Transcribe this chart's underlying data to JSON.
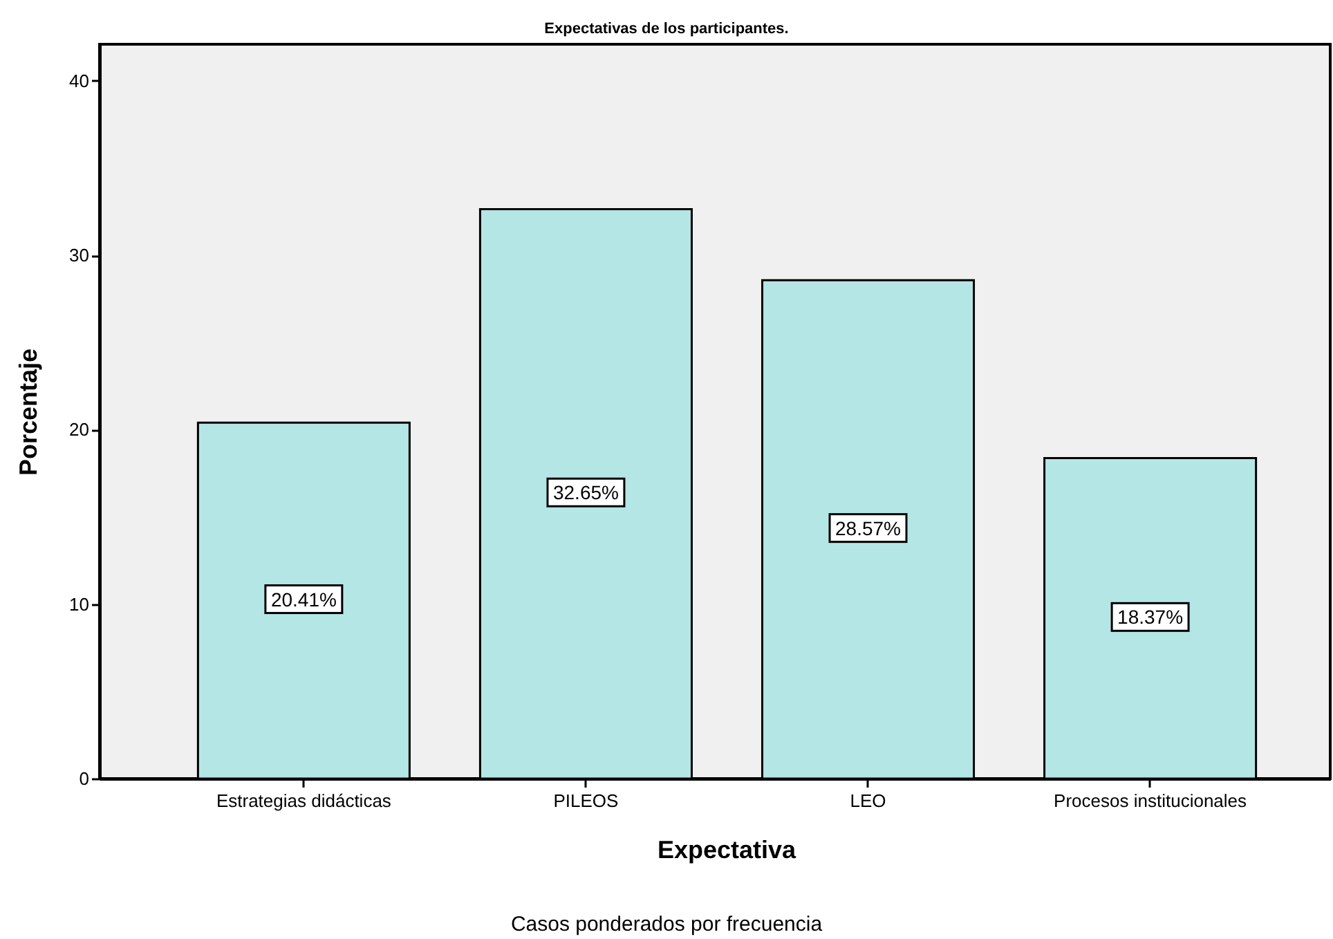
{
  "chart_data": {
    "type": "bar",
    "title": "Expectativas de los participantes.",
    "xlabel": "Expectativa",
    "ylabel": "Porcentaje",
    "categories": [
      "Estrategias didácticas",
      "PILEOS",
      "LEO",
      "Procesos institucionales"
    ],
    "values": [
      20.41,
      32.65,
      28.57,
      18.37
    ],
    "value_labels": [
      "20.41%",
      "32.65%",
      "28.57%",
      "18.37%"
    ],
    "color": "#b4e6e6",
    "ylim": [
      0,
      42.1
    ],
    "yticks": [
      0,
      10,
      20,
      30,
      40
    ],
    "annotations": [
      "Casos ponderados por frecuencia"
    ]
  }
}
